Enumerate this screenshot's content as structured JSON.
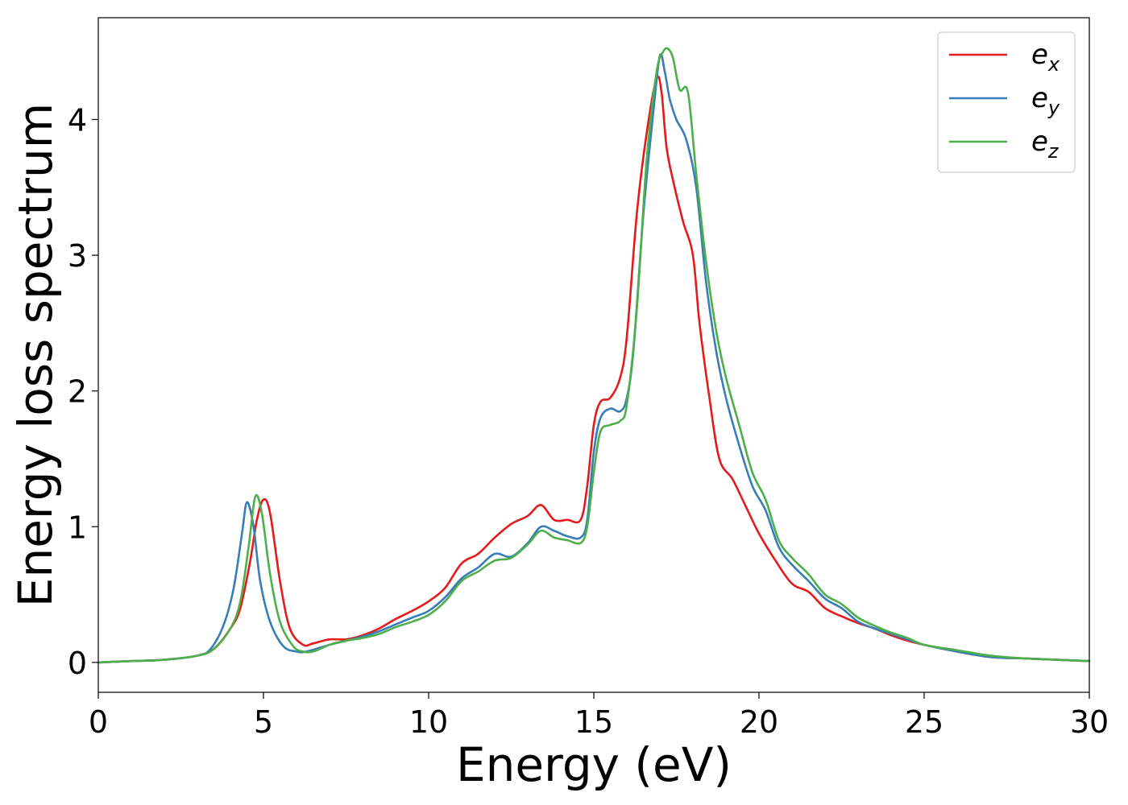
{
  "chart_data": {
    "type": "line",
    "xlabel": "Energy (eV)",
    "ylabel": "Energy loss spectrum",
    "xlim": [
      0,
      30
    ],
    "ylim": [
      -0.22,
      4.75
    ],
    "xticks": [
      0,
      5,
      10,
      15,
      20,
      25,
      30
    ],
    "yticks": [
      0,
      1,
      2,
      3,
      4
    ],
    "grid": false,
    "legend_position": "top-right",
    "series": [
      {
        "name": "e",
        "subscript": "x",
        "color": "#e41a1c",
        "x": [
          0,
          1,
          2,
          3,
          3.5,
          4,
          4.3,
          4.6,
          4.8,
          5.0,
          5.2,
          5.5,
          5.8,
          6.2,
          6.5,
          7,
          7.5,
          8,
          8.5,
          9,
          9.5,
          10,
          10.5,
          11,
          11.5,
          12,
          12.5,
          13,
          13.4,
          13.8,
          14.2,
          14.6,
          14.8,
          15.0,
          15.2,
          15.5,
          15.8,
          16.0,
          16.3,
          16.6,
          16.9,
          17.05,
          17.2,
          17.4,
          17.7,
          18.0,
          18.2,
          18.5,
          18.8,
          19.2,
          19.6,
          20.0,
          20.5,
          21,
          21.5,
          22,
          22.5,
          23,
          23.5,
          24,
          24.5,
          25,
          26,
          27,
          28,
          29,
          30
        ],
        "y": [
          0,
          0.01,
          0.02,
          0.05,
          0.1,
          0.25,
          0.4,
          0.75,
          1.05,
          1.2,
          1.1,
          0.6,
          0.25,
          0.13,
          0.14,
          0.17,
          0.17,
          0.2,
          0.25,
          0.32,
          0.38,
          0.45,
          0.55,
          0.73,
          0.8,
          0.92,
          1.02,
          1.08,
          1.16,
          1.05,
          1.05,
          1.05,
          1.3,
          1.75,
          1.92,
          1.95,
          2.1,
          2.4,
          3.3,
          3.9,
          4.3,
          4.2,
          3.8,
          3.55,
          3.25,
          3.0,
          2.5,
          1.95,
          1.5,
          1.35,
          1.15,
          0.95,
          0.75,
          0.58,
          0.52,
          0.4,
          0.34,
          0.29,
          0.25,
          0.2,
          0.16,
          0.13,
          0.08,
          0.04,
          0.03,
          0.02,
          0.01
        ]
      },
      {
        "name": "e",
        "subscript": "y",
        "color": "#377eb8",
        "x": [
          0,
          1,
          2,
          3,
          3.4,
          3.8,
          4.1,
          4.35,
          4.5,
          4.7,
          4.9,
          5.2,
          5.6,
          6.0,
          6.3,
          7,
          7.5,
          8,
          8.5,
          9,
          9.5,
          10,
          10.5,
          11,
          11.5,
          12,
          12.5,
          13,
          13.4,
          13.8,
          14.2,
          14.6,
          14.8,
          15.0,
          15.2,
          15.5,
          15.8,
          16.0,
          16.2,
          16.5,
          16.8,
          17.0,
          17.15,
          17.3,
          17.5,
          17.8,
          18.1,
          18.4,
          18.7,
          19.0,
          19.4,
          19.8,
          20.2,
          20.6,
          21,
          21.5,
          22,
          22.5,
          23,
          23.5,
          24,
          24.5,
          25,
          26,
          27,
          28,
          29,
          30
        ],
        "y": [
          0,
          0.01,
          0.02,
          0.05,
          0.1,
          0.28,
          0.55,
          0.95,
          1.18,
          1.0,
          0.6,
          0.3,
          0.12,
          0.08,
          0.08,
          0.13,
          0.16,
          0.19,
          0.23,
          0.28,
          0.33,
          0.38,
          0.48,
          0.62,
          0.7,
          0.8,
          0.78,
          0.88,
          1.0,
          0.97,
          0.93,
          0.92,
          1.05,
          1.55,
          1.8,
          1.87,
          1.85,
          1.95,
          2.3,
          3.3,
          4.05,
          4.47,
          4.35,
          4.15,
          4.0,
          3.85,
          3.5,
          2.8,
          2.3,
          1.95,
          1.6,
          1.3,
          1.12,
          0.85,
          0.72,
          0.6,
          0.47,
          0.4,
          0.3,
          0.25,
          0.21,
          0.17,
          0.13,
          0.08,
          0.04,
          0.03,
          0.02,
          0.01
        ]
      },
      {
        "name": "e",
        "subscript": "z",
        "color": "#4daf4a",
        "x": [
          0,
          1,
          2,
          3,
          3.5,
          4,
          4.3,
          4.55,
          4.75,
          4.95,
          5.2,
          5.5,
          5.9,
          6.2,
          6.5,
          7,
          7.5,
          8,
          8.5,
          9,
          9.5,
          10,
          10.5,
          11,
          11.5,
          12,
          12.5,
          13,
          13.4,
          13.8,
          14.2,
          14.6,
          14.8,
          15.0,
          15.2,
          15.5,
          15.8,
          16.0,
          16.3,
          16.6,
          16.9,
          17.1,
          17.25,
          17.4,
          17.6,
          17.85,
          18.1,
          18.4,
          18.7,
          19.0,
          19.4,
          19.8,
          20.2,
          20.6,
          21,
          21.5,
          22,
          22.5,
          23,
          23.5,
          24,
          24.5,
          25,
          26,
          27,
          28,
          29,
          30
        ],
        "y": [
          0,
          0.01,
          0.02,
          0.05,
          0.1,
          0.25,
          0.45,
          0.85,
          1.22,
          1.1,
          0.65,
          0.3,
          0.12,
          0.08,
          0.08,
          0.13,
          0.16,
          0.18,
          0.21,
          0.26,
          0.3,
          0.35,
          0.45,
          0.6,
          0.67,
          0.75,
          0.77,
          0.87,
          0.97,
          0.92,
          0.9,
          0.88,
          1.0,
          1.4,
          1.7,
          1.75,
          1.78,
          1.9,
          2.6,
          3.7,
          4.35,
          4.5,
          4.52,
          4.45,
          4.22,
          4.2,
          3.6,
          2.95,
          2.45,
          2.1,
          1.75,
          1.4,
          1.2,
          0.9,
          0.77,
          0.65,
          0.5,
          0.43,
          0.33,
          0.27,
          0.22,
          0.18,
          0.13,
          0.09,
          0.05,
          0.03,
          0.02,
          0.01
        ]
      }
    ]
  }
}
